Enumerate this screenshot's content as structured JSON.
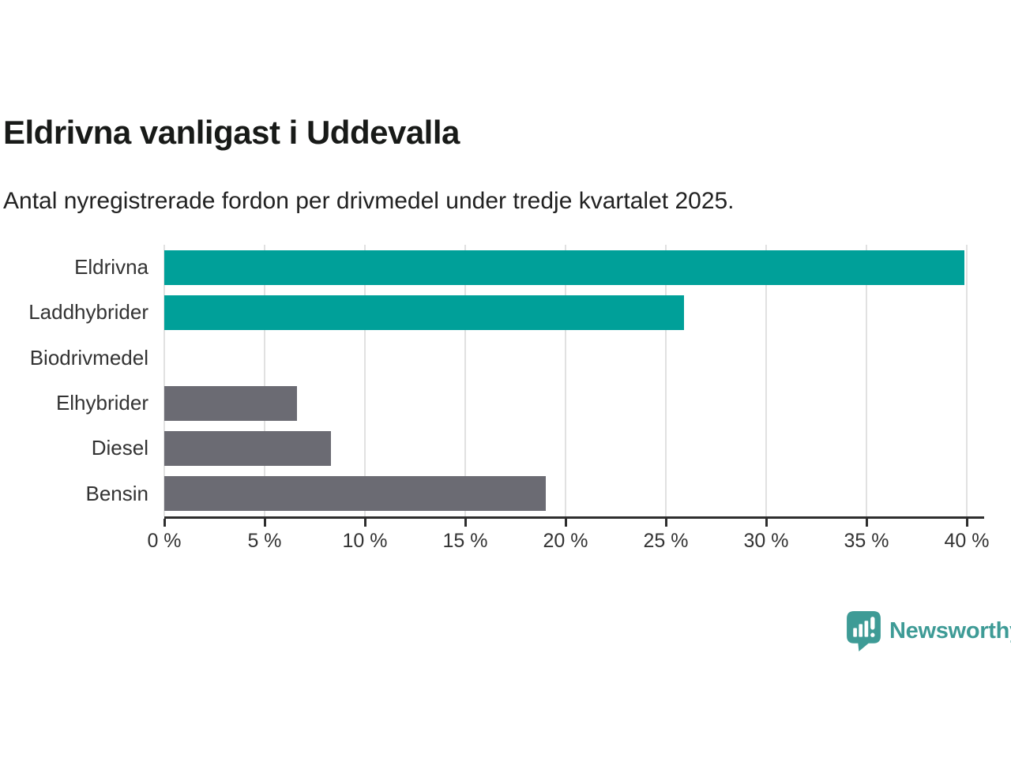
{
  "chart_data": {
    "type": "bar",
    "orientation": "horizontal",
    "title": "Eldrivna vanligast i Uddevalla",
    "subtitle": "Antal nyregistrerade fordon per drivmedel under tredje kvartalet 2025.",
    "categories": [
      "Eldrivna",
      "Laddhybrider",
      "Biodrivmedel",
      "Elhybrider",
      "Diesel",
      "Bensin"
    ],
    "values": [
      39.9,
      25.9,
      0,
      6.6,
      8.3,
      19.0
    ],
    "bar_colors": [
      "#00a099",
      "#00a099",
      "#6b6b73",
      "#6b6b73",
      "#6b6b73",
      "#6b6b73"
    ],
    "x_ticks": [
      "0 %",
      "5 %",
      "10 %",
      "15 %",
      "20 %",
      "25 %",
      "30 %",
      "35 %",
      "40 %"
    ],
    "xlim": [
      0,
      40
    ],
    "xlabel": "",
    "ylabel": "",
    "grid": "vertical",
    "legend": "none"
  },
  "colors": {
    "accent_teal": "#00a099",
    "neutral_gray": "#6b6b73",
    "brand_teal": "#3e9b96",
    "gridline": "#e1e1e1",
    "axis": "#2e2e2e"
  },
  "footer": {
    "brand": "Newsworthy"
  }
}
